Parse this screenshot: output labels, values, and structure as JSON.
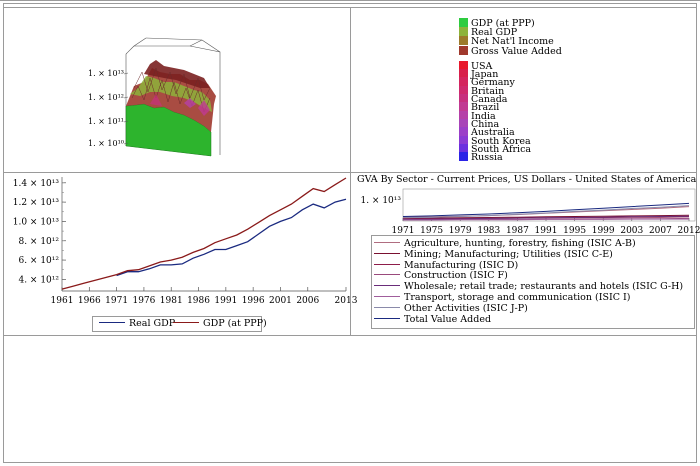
{
  "legend3d": {
    "metrics": [
      {
        "label": "GDP (at PPP)",
        "color": "#2ecc40"
      },
      {
        "label": "Real GDP",
        "color": "#8db33a"
      },
      {
        "label": "Net Nat'l Income",
        "color": "#9c7a2a"
      },
      {
        "label": "Gross Value Added",
        "color": "#a0392d"
      }
    ],
    "countries": [
      {
        "label": "USA",
        "color": "#e8192c"
      },
      {
        "label": "Japan",
        "color": "#d81f4a"
      },
      {
        "label": "Germany",
        "color": "#d4255e"
      },
      {
        "label": "Britain",
        "color": "#cf2a6e"
      },
      {
        "label": "Canada",
        "color": "#c7307f"
      },
      {
        "label": "Brazil",
        "color": "#c13a93"
      },
      {
        "label": "India",
        "color": "#b540a8"
      },
      {
        "label": "China",
        "color": "#a844b8"
      },
      {
        "label": "Australia",
        "color": "#9b3fc8"
      },
      {
        "label": "South Korea",
        "color": "#8a3ad4"
      },
      {
        "label": "South Africa",
        "color": "#6b30df"
      },
      {
        "label": "Russia",
        "color": "#2b23e6"
      }
    ]
  },
  "chart_data": [
    {
      "type": "area",
      "subtype": "3d-surface",
      "yticks": [
        "1. × 10¹³",
        "1. × 10¹²",
        "1. × 10¹¹",
        "1. × 10¹⁰"
      ],
      "yscale": "log"
    },
    {
      "type": "line",
      "x": [
        1961,
        1963,
        1965,
        1967,
        1969,
        1971,
        1973,
        1975,
        1977,
        1979,
        1981,
        1983,
        1985,
        1987,
        1989,
        1991,
        1993,
        1995,
        1997,
        1999,
        2001,
        2003,
        2005,
        2007,
        2009,
        2011,
        2013
      ],
      "xticks": [
        "1961",
        "1966",
        "1971",
        "1976",
        "1981",
        "1986",
        "1991",
        "1996",
        "2001",
        "2006",
        "2013"
      ],
      "yticks": [
        "4. × 10¹²",
        "6. × 10¹²",
        "8. × 10¹²",
        "1.0 × 10¹³",
        "1.2 × 10¹³",
        "1.4 × 10¹³"
      ],
      "ytick_values": [
        4000000000000.0,
        6000000000000.0,
        8000000000000.0,
        10000000000000.0,
        12000000000000.0,
        14000000000000.0
      ],
      "ylim": [
        2800000000000.0,
        14600000000000.0
      ],
      "legend_position": "bottom",
      "series": [
        {
          "name": "Real GDP",
          "color": "#1a2a80",
          "values": [
            null,
            null,
            null,
            null,
            null,
            4400000000000.0,
            4800000000000.0,
            4800000000000.0,
            5100000000000.0,
            5500000000000.0,
            5500000000000.0,
            5600000000000.0,
            6200000000000.0,
            6600000000000.0,
            7100000000000.0,
            7100000000000.0,
            7500000000000.0,
            7900000000000.0,
            8700000000000.0,
            9500000000000.0,
            10000000000000.0,
            10400000000000.0,
            11200000000000.0,
            11800000000000.0,
            11400000000000.0,
            12000000000000.0,
            12300000000000.0
          ]
        },
        {
          "name": "GDP (at PPP)",
          "color": "#8a1a1a",
          "values": [
            3000000000000.0,
            3300000000000.0,
            3600000000000.0,
            3900000000000.0,
            4200000000000.0,
            4500000000000.0,
            4900000000000.0,
            5000000000000.0,
            5400000000000.0,
            5800000000000.0,
            6000000000000.0,
            6300000000000.0,
            6800000000000.0,
            7200000000000.0,
            7800000000000.0,
            8200000000000.0,
            8600000000000.0,
            9200000000000.0,
            9900000000000.0,
            10600000000000.0,
            11200000000000.0,
            11800000000000.0,
            12600000000000.0,
            13400000000000.0,
            13100000000000.0,
            13800000000000.0,
            14500000000000.0
          ]
        }
      ]
    },
    {
      "type": "line",
      "title": "GVA By Sector - Current Prices, US Dollars - United States of America",
      "xticks": [
        "1971",
        "1975",
        "1979",
        "1983",
        "1987",
        "1991",
        "1995",
        "1999",
        "2003",
        "2007",
        "2012"
      ],
      "ytick": "1. × 10¹³",
      "legend_position": "bottom",
      "series": [
        {
          "name": "Agriculture, hunting, forestry, fishing (ISIC A-B)",
          "color": "#b06d80"
        },
        {
          "name": "Mining; Manufacturing; Utilities (ISIC C-E)",
          "color": "#7a1030"
        },
        {
          "name": "Manufacturing (ISIC D)",
          "color": "#8e1d4a"
        },
        {
          "name": "Construction (ISIC F)",
          "color": "#9a4a7c"
        },
        {
          "name": "Wholesale; retail trade; restaurants and hotels (ISIC G-H)",
          "color": "#6a2d7a"
        },
        {
          "name": "Transport, storage and communication (ISIC I)",
          "color": "#a05d9c"
        },
        {
          "name": "Other Activities (ISIC J-P)",
          "color": "#8a8aaa"
        },
        {
          "name": "Total Value Added",
          "color": "#1a2a80"
        }
      ]
    }
  ]
}
